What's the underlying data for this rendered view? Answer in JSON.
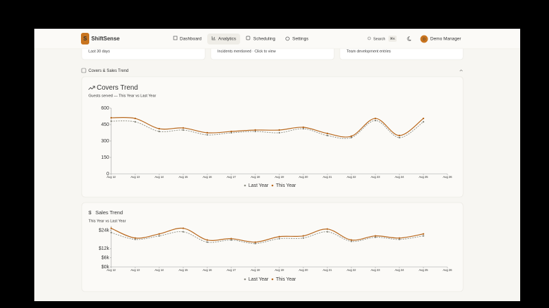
{
  "nav": {
    "brand": "ShiftSense",
    "logo": "S",
    "links": [
      "Dashboard",
      "Analytics",
      "Scheduling",
      "Settings"
    ],
    "search": "Search",
    "shortcut": "⌘K",
    "avatar": "D",
    "user": "Demo Manager"
  },
  "top_cards": [
    "Last 30 days",
    "Incidents mentioned · Click to view",
    "Team development entries"
  ],
  "section": {
    "title": "Covers & Sales Trend"
  },
  "chart_data": [
    {
      "type": "line",
      "title": "Covers Trend",
      "subtitle": "Guests served — This Year vs Last Year",
      "categories": [
        "Aug 12",
        "Aug 13",
        "Aug 14",
        "Aug 15",
        "Aug 16",
        "Aug 17",
        "Aug 18",
        "Aug 19",
        "Aug 20",
        "Aug 21",
        "Aug 22",
        "Aug 23",
        "Aug 24",
        "Aug 25",
        "Aug 26"
      ],
      "series": [
        {
          "name": "Last Year",
          "color": "#8a8a80",
          "values": [
            481,
            475,
            387,
            400,
            356,
            375,
            387,
            375,
            412,
            350,
            331,
            487,
            331,
            475,
            null
          ]
        },
        {
          "name": "This Year",
          "color": "#b8671c",
          "values": [
            512,
            506,
            412,
            419,
            375,
            387,
            400,
            400,
            425,
            369,
            344,
            506,
            350,
            506,
            null
          ]
        }
      ],
      "ylim": [
        0,
        600
      ],
      "yticks": [
        0,
        150,
        300,
        450,
        600
      ],
      "legend": "bottom"
    },
    {
      "type": "line",
      "title": "Sales Trend",
      "subtitle": "This Year vs Last Year",
      "categories": [
        "Aug 12",
        "Aug 13",
        "Aug 14",
        "Aug 15",
        "Aug 16",
        "Aug 17",
        "Aug 18",
        "Aug 19",
        "Aug 20",
        "Aug 21",
        "Aug 22",
        "Aug 23",
        "Aug 24",
        "Aug 25",
        "Aug 26"
      ],
      "series": [
        {
          "name": "Last Year",
          "color": "#8a8a80",
          "values": [
            22600,
            18100,
            20400,
            23100,
            16300,
            17700,
            15400,
            18600,
            19000,
            23100,
            16800,
            19500,
            18100,
            20400,
            null
          ]
        },
        {
          "name": "This Year",
          "color": "#b8671c",
          "values": [
            25400,
            19000,
            21700,
            25400,
            17700,
            18600,
            16300,
            19900,
            20400,
            24900,
            17700,
            20400,
            19000,
            21700,
            null
          ]
        }
      ],
      "ylim": [
        0,
        27000
      ],
      "yticks": [
        {
          "value": 0,
          "label": "$0k"
        },
        {
          "value": 6000,
          "label": "$6k"
        },
        {
          "value": 12000,
          "label": "$12k"
        },
        {
          "value": 24000,
          "label": "$24k"
        }
      ],
      "legend": "bottom"
    }
  ]
}
